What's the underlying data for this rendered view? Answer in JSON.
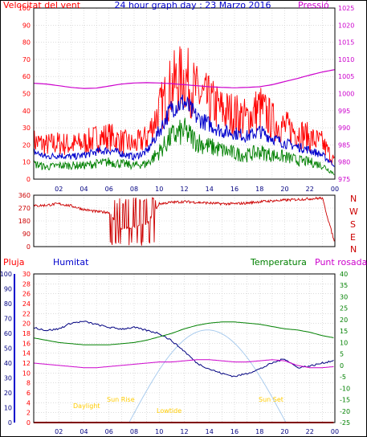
{
  "header": {
    "wind_title": "Velocitat del vent",
    "date_title": "24 hour graph day : 23 Marzo 2016",
    "pressure_title": "Pressió"
  },
  "lower_header": {
    "rain": "Pluja",
    "humidity": "Humitat",
    "temperature": "Temperatura",
    "dewpoint": "Punt rosada"
  },
  "compass": [
    "N",
    "W",
    "S",
    "E",
    "N"
  ],
  "annotations": {
    "daylight": "Daylight",
    "sun_rise": "Sun Rise",
    "low_tide": "Lowtide",
    "sun_set": "Sun Set"
  },
  "colors": {
    "wind_gust": "#ff0000",
    "wind_avg": "#0000cc",
    "wind_min": "#008000",
    "pressure": "#cc00cc",
    "direction": "#cc0000",
    "humidity": "#000080",
    "temperature": "#008000",
    "dewpoint": "#cc00cc",
    "rain": "#ff0000",
    "sun_curve": "#aaccee",
    "annotation": "#ffcc00",
    "grid": "#c8c8c8",
    "frame": "#000000"
  },
  "chart_data": [
    {
      "type": "line",
      "title": "24 hour graph day : 23 Marzo 2016",
      "x_tick_labels": [
        "02",
        "04",
        "06",
        "08",
        "10",
        "12",
        "14",
        "16",
        "18",
        "20",
        "22",
        "00"
      ],
      "left_axis": {
        "label": "Velocitat del vent",
        "ticks": [
          "0",
          "10",
          "20",
          "30",
          "40",
          "50",
          "60",
          "70",
          "80",
          "90",
          "100"
        ],
        "ylim": [
          0,
          100
        ]
      },
      "right_axis": {
        "label": "Pressió",
        "ticks": [
          "975",
          "980",
          "985",
          "990",
          "995",
          "1000",
          "1005",
          "1010",
          "1015",
          "1020",
          "1025"
        ],
        "ylim": [
          975,
          1025
        ]
      },
      "hours": [
        0,
        1,
        2,
        3,
        4,
        5,
        6,
        7,
        8,
        9,
        10,
        11,
        12,
        13,
        14,
        15,
        16,
        17,
        18,
        19,
        20,
        21,
        22,
        23,
        24
      ],
      "series": [
        {
          "name": "gust",
          "values": [
            22,
            20,
            21,
            20,
            21,
            24,
            25,
            22,
            20,
            24,
            40,
            55,
            60,
            50,
            45,
            40,
            38,
            35,
            42,
            34,
            30,
            28,
            24,
            21,
            10
          ]
        },
        {
          "name": "average",
          "values": [
            16,
            13,
            14,
            13,
            14,
            16,
            17,
            15,
            13,
            16,
            28,
            42,
            45,
            36,
            32,
            28,
            27,
            25,
            28,
            24,
            21,
            19,
            17,
            14,
            8
          ]
        },
        {
          "name": "minimum",
          "values": [
            9,
            7,
            8,
            8,
            8,
            9,
            10,
            9,
            8,
            9,
            16,
            25,
            28,
            22,
            19,
            17,
            15,
            14,
            16,
            14,
            13,
            11,
            10,
            8,
            3
          ]
        },
        {
          "name": "pressure",
          "values": [
            1003,
            1002.8,
            1002.3,
            1001.8,
            1001.5,
            1001.6,
            1002.2,
            1002.8,
            1003.1,
            1003.2,
            1003.1,
            1002.9,
            1002.6,
            1002.3,
            1002.0,
            1001.8,
            1001.7,
            1001.8,
            1002.0,
            1002.6,
            1003.5,
            1004.4,
            1005.4,
            1006.3,
            1007
          ]
        }
      ]
    },
    {
      "type": "line",
      "title": "",
      "left_axis": {
        "ticks": [
          "0",
          "90",
          "180",
          "270",
          "360"
        ],
        "ylim": [
          0,
          360
        ]
      },
      "hours": [
        0,
        1,
        2,
        3,
        4,
        5,
        6,
        7,
        8,
        9,
        10,
        11,
        12,
        13,
        14,
        15,
        16,
        17,
        18,
        19,
        20,
        21,
        22,
        23,
        24
      ],
      "series": [
        {
          "name": "direction",
          "values": [
            285,
            290,
            300,
            285,
            260,
            245,
            240,
            120,
            140,
            160,
            300,
            310,
            315,
            310,
            305,
            300,
            300,
            305,
            315,
            320,
            325,
            330,
            335,
            340,
            20
          ]
        }
      ]
    },
    {
      "type": "line",
      "title": "",
      "x_tick_labels": [
        "02",
        "04",
        "06",
        "08",
        "10",
        "12",
        "14",
        "16",
        "18",
        "20",
        "22",
        "00"
      ],
      "axes": {
        "humidity": {
          "ticks": [
            "0",
            "10",
            "20",
            "30",
            "40",
            "50",
            "60",
            "70",
            "80",
            "90",
            "100"
          ],
          "ylim": [
            0,
            100
          ]
        },
        "rain": {
          "ticks": [
            "0",
            "2",
            "4",
            "6",
            "8",
            "10",
            "12",
            "14",
            "16",
            "18",
            "20",
            "22",
            "24",
            "26",
            "28",
            "30"
          ],
          "ylim": [
            0,
            30
          ]
        },
        "temperature": {
          "ticks": [
            "-25",
            "-20",
            "-15",
            "-10",
            "-5",
            "0",
            "5",
            "10",
            "15",
            "20",
            "25",
            "30",
            "35",
            "40"
          ],
          "ylim": [
            -25,
            40
          ]
        }
      },
      "hours": [
        0,
        1,
        2,
        3,
        4,
        5,
        6,
        7,
        8,
        9,
        10,
        11,
        12,
        13,
        14,
        15,
        16,
        17,
        18,
        19,
        20,
        21,
        22,
        23,
        24
      ],
      "series": [
        {
          "name": "humidity",
          "values": [
            64,
            62,
            63,
            67,
            68,
            66,
            64,
            63,
            64,
            62,
            60,
            55,
            48,
            40,
            36,
            33,
            31,
            33,
            36,
            40,
            43,
            37,
            38,
            40,
            42
          ]
        },
        {
          "name": "temperature",
          "values": [
            12,
            11,
            10,
            9.5,
            9,
            9,
            9,
            9.5,
            10,
            11,
            12.5,
            14,
            16,
            17.5,
            18.5,
            19,
            19,
            18.5,
            18,
            17,
            16,
            15.5,
            14.5,
            13,
            12
          ]
        },
        {
          "name": "dewpoint",
          "values": [
            1,
            0.5,
            0,
            -0.5,
            -1,
            -1,
            -0.5,
            0,
            0.5,
            1,
            1.5,
            1.5,
            2,
            2.5,
            2.5,
            2,
            1.5,
            1.5,
            2,
            2.5,
            2,
            0,
            -1,
            -1,
            -0.5
          ]
        },
        {
          "name": "rain",
          "values": [
            0,
            0,
            0,
            0,
            0,
            0,
            0,
            0,
            0,
            0,
            0,
            0,
            0,
            0,
            0,
            0,
            0,
            0,
            0,
            0,
            0,
            0,
            0,
            0,
            0
          ]
        }
      ]
    }
  ]
}
